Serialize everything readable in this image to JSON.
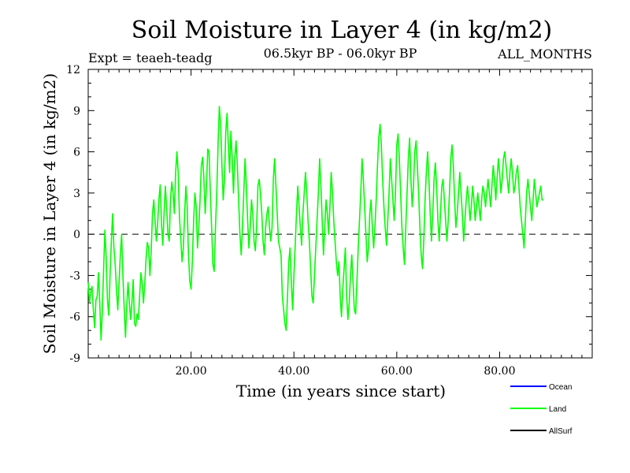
{
  "chart_data": {
    "type": "line",
    "title": "Soil Moisture in Layer 4 (in kg/m2)",
    "subtitle": "06.5kyr BP - 06.0kyr BP",
    "experiment_label": "Expt = teaeh-teadg",
    "months_label": "ALL_MONTHS",
    "xlabel": "Time (in years since start)",
    "ylabel": "Soil Moisture in Layer 4 (in kg/m2)",
    "xlim": [
      0,
      98
    ],
    "ylim": [
      -9,
      12
    ],
    "x_ticks": [
      20,
      40,
      60,
      80
    ],
    "x_tick_labels": [
      "20.00",
      "40.00",
      "60.00",
      "80.00"
    ],
    "y_ticks": [
      -9,
      -6,
      -3,
      0,
      3,
      6,
      9,
      12
    ],
    "y_tick_labels": [
      "-9",
      "-6",
      "-3",
      "0",
      "3",
      "6",
      "9",
      "12"
    ],
    "reference_line": 0,
    "legend": [
      {
        "name": "Ocean",
        "color": "#0000ff"
      },
      {
        "name": "Land",
        "color": "#00ff00"
      },
      {
        "name": "AllSurf",
        "color": "#000000"
      }
    ],
    "series": [
      {
        "name": "Land",
        "color": "#00ff00",
        "x_step": 0.25,
        "values": [
          -3.5,
          -5.0,
          -4.2,
          -3.8,
          -5.5,
          -6.8,
          -4.8,
          -4.5,
          -2.8,
          -5.0,
          -7.7,
          -5.5,
          -2.5,
          0.3,
          -1.8,
          -4.8,
          -5.9,
          -3.0,
          -0.5,
          1.5,
          -1.0,
          -2.2,
          -4.0,
          -5.5,
          -3.5,
          -1.5,
          0.0,
          -3.0,
          -5.4,
          -7.5,
          -5.2,
          -3.5,
          -5.0,
          -6.2,
          -5.0,
          -3.3,
          -6.5,
          -6.7,
          -5.8,
          -6.2,
          -4.5,
          -2.8,
          -3.6,
          -5.0,
          -3.6,
          -1.8,
          -0.6,
          -1.0,
          -3.0,
          -1.2,
          1.5,
          2.5,
          1.0,
          -0.5,
          0.8,
          2.5,
          3.6,
          0.8,
          -0.8,
          1.5,
          3.5,
          2.0,
          0.0,
          -0.5,
          2.5,
          3.8,
          3.0,
          1.5,
          4.5,
          6.0,
          4.5,
          1.2,
          -0.3,
          -2.0,
          -1.0,
          1.5,
          3.5,
          2.0,
          -1.5,
          -3.4,
          -4.0,
          -2.0,
          1.0,
          3.0,
          2.0,
          -1.0,
          0.5,
          2.5,
          5.0,
          5.6,
          4.0,
          1.5,
          3.5,
          6.2,
          6.0,
          3.0,
          0.5,
          -2.2,
          -2.7,
          0.5,
          3.0,
          6.5,
          9.3,
          8.0,
          5.0,
          2.5,
          4.0,
          7.5,
          8.8,
          6.5,
          4.5,
          7.5,
          5.5,
          3.0,
          5.5,
          6.8,
          5.0,
          2.5,
          0.0,
          -1.5,
          0.5,
          3.0,
          5.5,
          3.5,
          1.0,
          -1.0,
          0.5,
          2.5,
          1.5,
          -0.5,
          -1.2,
          0.5,
          3.5,
          4.0,
          3.0,
          1.5,
          -0.5,
          -1.5,
          0.5,
          1.5,
          2.0,
          0.5,
          -0.5,
          0.5,
          4.0,
          5.5,
          3.5,
          1.5,
          -0.5,
          -1.0,
          -1.5,
          -4.5,
          -5.5,
          -6.5,
          -7.0,
          -4.5,
          -2.0,
          -1.0,
          -3.5,
          -5.5,
          -3.0,
          -0.8,
          1.5,
          3.5,
          2.0,
          0.5,
          -0.8,
          1.5,
          3.0,
          4.5,
          3.0,
          1.0,
          -0.5,
          -2.5,
          -4.5,
          -5.0,
          -3.0,
          -1.0,
          1.0,
          3.0,
          5.5,
          3.5,
          1.0,
          -1.5,
          0.5,
          2.5,
          1.5,
          0.0,
          2.0,
          4.5,
          3.0,
          1.0,
          -0.5,
          -2.0,
          -3.0,
          -2.0,
          -4.5,
          -6.0,
          -4.0,
          -2.5,
          -1.0,
          -4.5,
          -6.2,
          -5.0,
          -3.0,
          -1.5,
          -3.5,
          -5.5,
          -5.8,
          -3.5,
          -1.0,
          1.0,
          3.0,
          5.5,
          4.0,
          2.0,
          0.0,
          -2.0,
          -1.0,
          1.5,
          2.5,
          0.5,
          -1.0,
          0.5,
          2.5,
          5.0,
          7.0,
          8.0,
          6.5,
          4.0,
          2.0,
          0.5,
          -0.8,
          1.0,
          3.0,
          5.5,
          4.0,
          2.5,
          1.0,
          3.0,
          6.5,
          7.3,
          5.5,
          3.0,
          0.5,
          -1.0,
          -2.2,
          0.5,
          3.0,
          5.5,
          7.0,
          4.0,
          2.0,
          3.5,
          6.0,
          6.8,
          5.0,
          3.0,
          0.5,
          -1.5,
          -2.5,
          -0.5,
          2.5,
          4.5,
          6.0,
          4.0,
          1.5,
          -0.5,
          1.5,
          4.0,
          5.2,
          3.5,
          1.0,
          -0.5,
          1.5,
          3.5,
          4.0,
          2.5,
          1.0,
          -0.5,
          1.0,
          3.0,
          5.5,
          6.5,
          5.0,
          2.5,
          0.5,
          1.5,
          3.0,
          4.5,
          3.0,
          1.5,
          -0.5,
          1.0,
          2.5,
          3.5,
          2.5,
          1.0,
          2.0,
          3.5,
          2.5,
          1.0,
          2.0,
          3.0,
          2.0,
          1.0,
          2.5,
          3.5,
          3.0,
          2.0,
          3.0,
          4.0,
          3.0,
          2.0,
          3.5,
          5.0,
          4.0,
          2.5,
          4.0,
          5.5,
          4.5,
          3.0,
          4.0,
          5.5,
          6.0,
          5.0,
          4.0,
          3.0,
          4.5,
          5.5,
          4.5,
          3.0,
          3.5,
          4.5,
          5.0,
          3.5,
          2.0,
          1.0,
          0.0,
          -1.0,
          1.0,
          3.0,
          4.0,
          3.0,
          2.0,
          1.0,
          2.5,
          4.0,
          3.0,
          2.0,
          2.5,
          3.0,
          3.5,
          2.5,
          2.5
        ]
      }
    ]
  }
}
